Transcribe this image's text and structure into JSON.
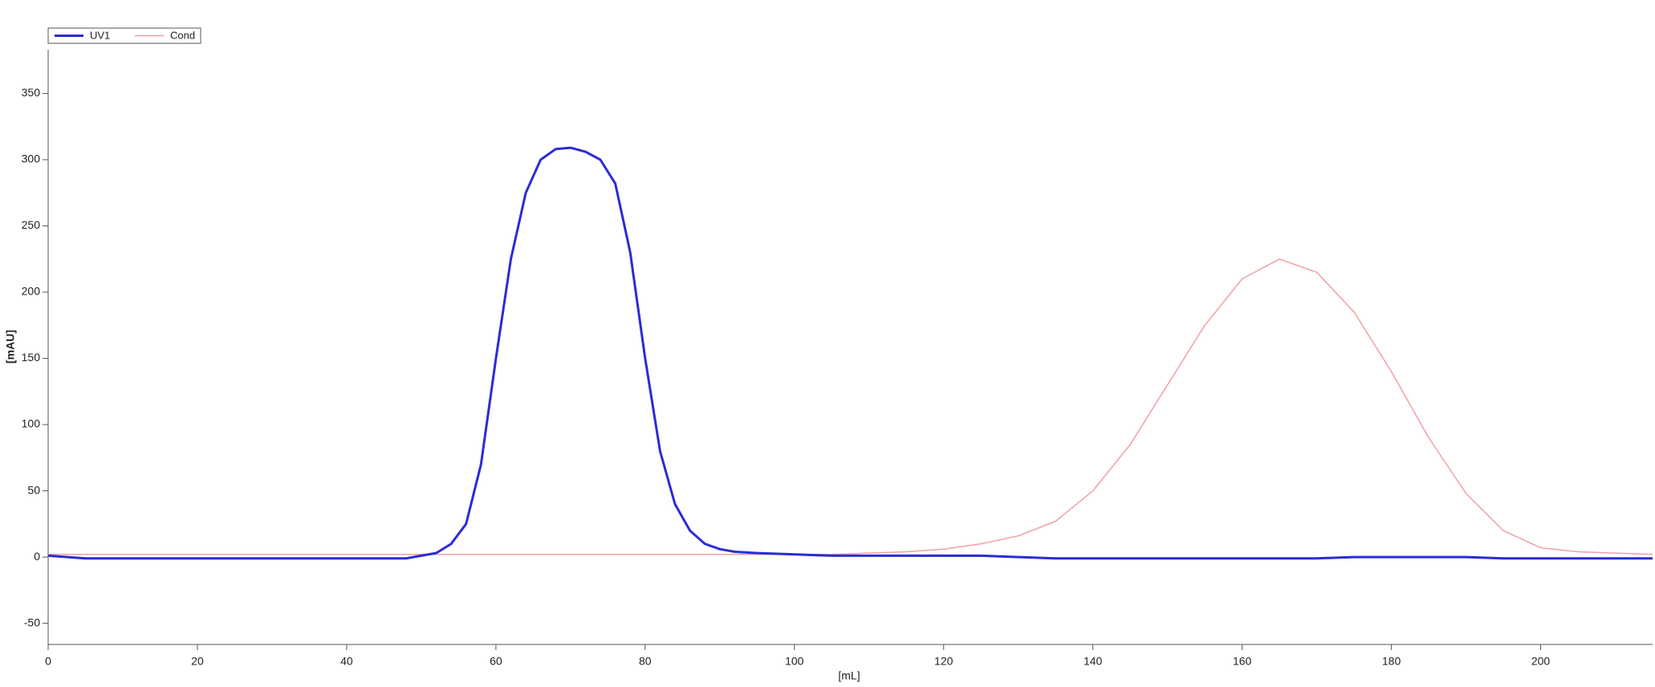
{
  "chart_data": {
    "type": "line",
    "x_label": "[mL]",
    "y_label": "[mAU]",
    "xlim": [
      0,
      215
    ],
    "ylim": [
      -66,
      383
    ],
    "xticks": [
      0,
      20,
      40,
      60,
      80,
      100,
      120,
      140,
      160,
      180,
      200
    ],
    "yticks": [
      -50,
      0,
      50,
      100,
      150,
      200,
      250,
      300,
      350
    ],
    "legend": "top-left",
    "x": [
      0,
      5,
      10,
      20,
      30,
      40,
      48,
      50,
      52,
      54,
      56,
      58,
      60,
      62,
      64,
      66,
      68,
      70,
      72,
      74,
      76,
      78,
      80,
      82,
      84,
      86,
      88,
      90,
      92,
      95,
      100,
      105,
      110,
      115,
      120,
      125,
      130,
      135,
      140,
      145,
      150,
      155,
      160,
      165,
      170,
      175,
      180,
      185,
      190,
      195,
      200,
      205,
      210,
      215
    ],
    "series": [
      {
        "name": "UV1",
        "color": "#2b2bd6",
        "width": 3,
        "values": [
          1,
          -1,
          -1,
          -1,
          -1,
          -1,
          -1,
          1,
          3,
          10,
          25,
          70,
          150,
          225,
          275,
          300,
          308,
          309,
          306,
          300,
          282,
          230,
          150,
          80,
          40,
          20,
          10,
          6,
          4,
          3,
          2,
          1,
          1,
          1,
          1,
          1,
          0,
          -1,
          -1,
          -1,
          -1,
          -1,
          -1,
          -1,
          -1,
          0,
          0,
          0,
          0,
          -1,
          -1,
          -1,
          -1,
          -1
        ]
      },
      {
        "name": "Cond",
        "color": "#f0a0a4",
        "width": 1.5,
        "values": [
          2,
          2,
          2,
          2,
          2,
          2,
          2,
          2,
          2,
          2,
          2,
          2,
          2,
          2,
          2,
          2,
          2,
          2,
          2,
          2,
          2,
          2,
          2,
          2,
          2,
          2,
          2,
          2,
          2,
          2,
          2,
          2,
          3,
          4,
          6,
          10,
          16,
          27,
          50,
          85,
          130,
          175,
          210,
          225,
          215,
          185,
          140,
          90,
          48,
          20,
          7,
          4,
          3,
          2
        ]
      }
    ]
  }
}
